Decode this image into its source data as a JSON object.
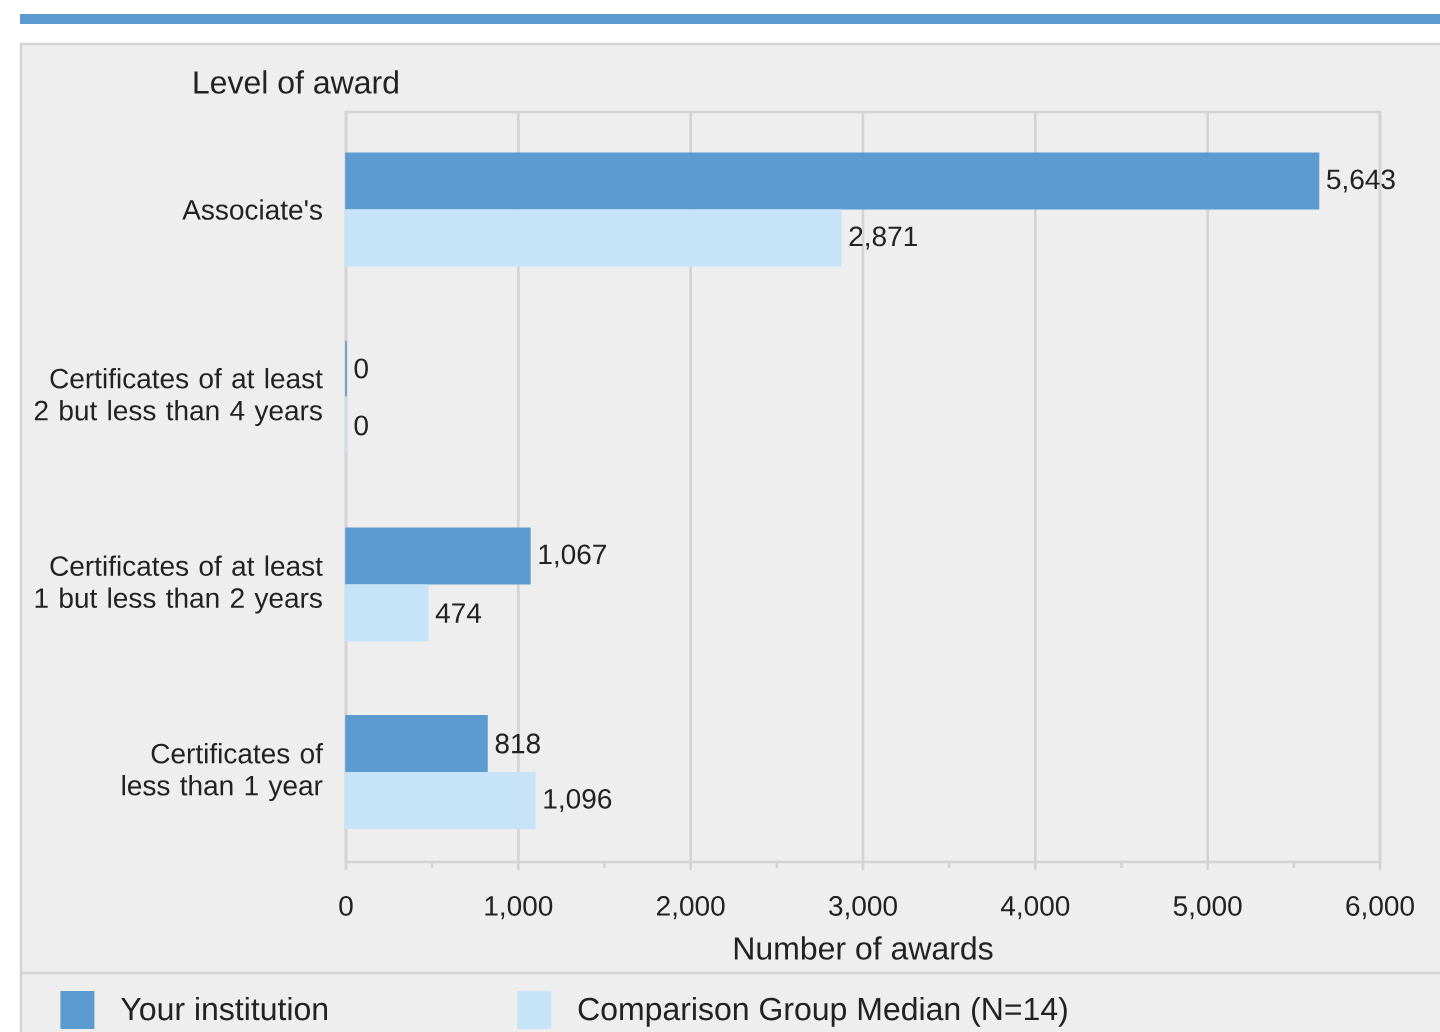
{
  "chart_data": {
    "type": "bar",
    "orientation": "horizontal",
    "ylabel": "Level of award",
    "xlabel": "Number of awards",
    "categories": [
      "Associate's",
      "Certificates of at least 2 but less than 4 years",
      "Certificates of at least 1 but less than 2 years",
      "Certificates of less than 1 year"
    ],
    "series": [
      {
        "name": "Your institution",
        "color": "#5b9bd0",
        "values": [
          5643,
          0,
          1067,
          818
        ],
        "value_labels": [
          "5,643",
          "0",
          "1,067",
          "818"
        ]
      },
      {
        "name": "Comparison Group Median (N=14)",
        "color": "#c6e3f7",
        "values": [
          2871,
          0,
          474,
          1096
        ],
        "value_labels": [
          "2,871",
          "0",
          "474",
          "1,096"
        ]
      }
    ],
    "xlim": [
      0,
      6000
    ],
    "xticks": [
      0,
      {
        "value": 500,
        "label": null
      },
      {
        "value": 1000,
        "label": "1,000"
      },
      {
        "value": 1500,
        "label": null
      },
      {
        "value": 2000,
        "label": "2,000"
      },
      {
        "value": 2500,
        "label": null
      },
      {
        "value": 3000,
        "label": "3,000"
      },
      {
        "value": 3500,
        "label": null
      },
      {
        "value": 4000,
        "label": "4,000"
      },
      {
        "value": 4500,
        "label": null
      },
      {
        "value": 5000,
        "label": "5,000"
      },
      {
        "value": 5500,
        "label": null
      },
      {
        "value": 6000,
        "label": "6,000"
      }
    ],
    "grid": "x",
    "legend": "bottom"
  }
}
